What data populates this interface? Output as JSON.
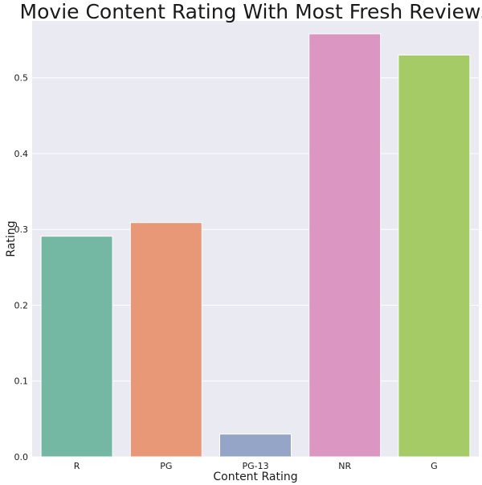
{
  "chart_data": {
    "type": "bar",
    "title": "Movie Content Rating With Most Fresh Reviews",
    "xlabel": "Content Rating",
    "ylabel": "Rating",
    "categories": [
      "R",
      "PG",
      "PG-13",
      "NR",
      "G"
    ],
    "values": [
      0.291,
      0.309,
      0.03,
      0.558,
      0.53
    ],
    "colors": [
      "#74b7a3",
      "#e99877",
      "#95a5c7",
      "#dc96c2",
      "#a4cb65"
    ],
    "ylim": [
      0,
      0.575
    ],
    "yticks": [
      0.0,
      0.1,
      0.2,
      0.3,
      0.4,
      0.5
    ],
    "ytick_labels": [
      "0.0",
      "0.1",
      "0.2",
      "0.3",
      "0.4",
      "0.5"
    ],
    "grid": true,
    "background": "#eaeaf2",
    "legend": "none"
  }
}
